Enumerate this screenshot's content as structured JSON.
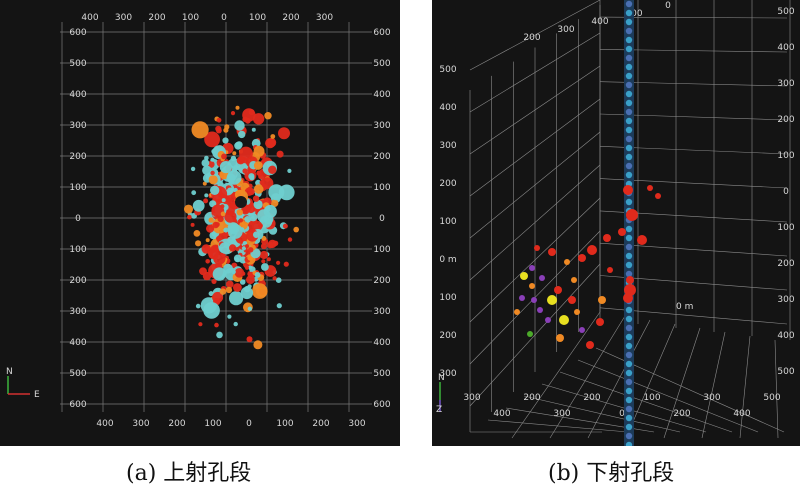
{
  "figure": {
    "panel_a": {
      "caption": "(a) 上射孔段",
      "top_ticks": [
        "400",
        "300",
        "200",
        "100",
        "0",
        "100",
        "200",
        "300"
      ],
      "bottom_ticks": [
        "400",
        "300",
        "200",
        "100",
        "0",
        "100",
        "200",
        "300"
      ],
      "left_ticks": [
        "600",
        "500",
        "400",
        "300",
        "200",
        "100",
        "0",
        "100",
        "200",
        "300",
        "400",
        "500",
        "600"
      ],
      "right_ticks": [
        "600",
        "500",
        "400",
        "300",
        "200",
        "100",
        "0",
        "100",
        "200",
        "300",
        "400",
        "500",
        "600"
      ],
      "compass_n": "N",
      "compass_e": "E"
    },
    "panel_b": {
      "caption": "(b) 下射孔段",
      "left_ticks": [
        "500",
        "400",
        "300",
        "200",
        "100",
        "0 m",
        "100",
        "200",
        "300"
      ],
      "right_ticks": [
        "500",
        "400",
        "300",
        "200",
        "100",
        "0",
        "100",
        "200",
        "300",
        "400",
        "500"
      ],
      "top_ticks": [
        "200",
        "300",
        "400",
        "100",
        "0"
      ],
      "bottom_ticks": [
        "300",
        "400",
        "200",
        "300",
        "200",
        "0",
        "100",
        "200",
        "300",
        "400",
        "500"
      ],
      "axis_zero": "0 m",
      "compass_n": "N",
      "compass_e": "Z"
    }
  },
  "colors": {
    "background": "#141414",
    "cyan": "#6fcfcf",
    "red": "#e02a1c",
    "orange": "#f08a24",
    "yellow": "#e8e020",
    "purple": "#8a3fb8",
    "green": "#4caa2a"
  }
}
